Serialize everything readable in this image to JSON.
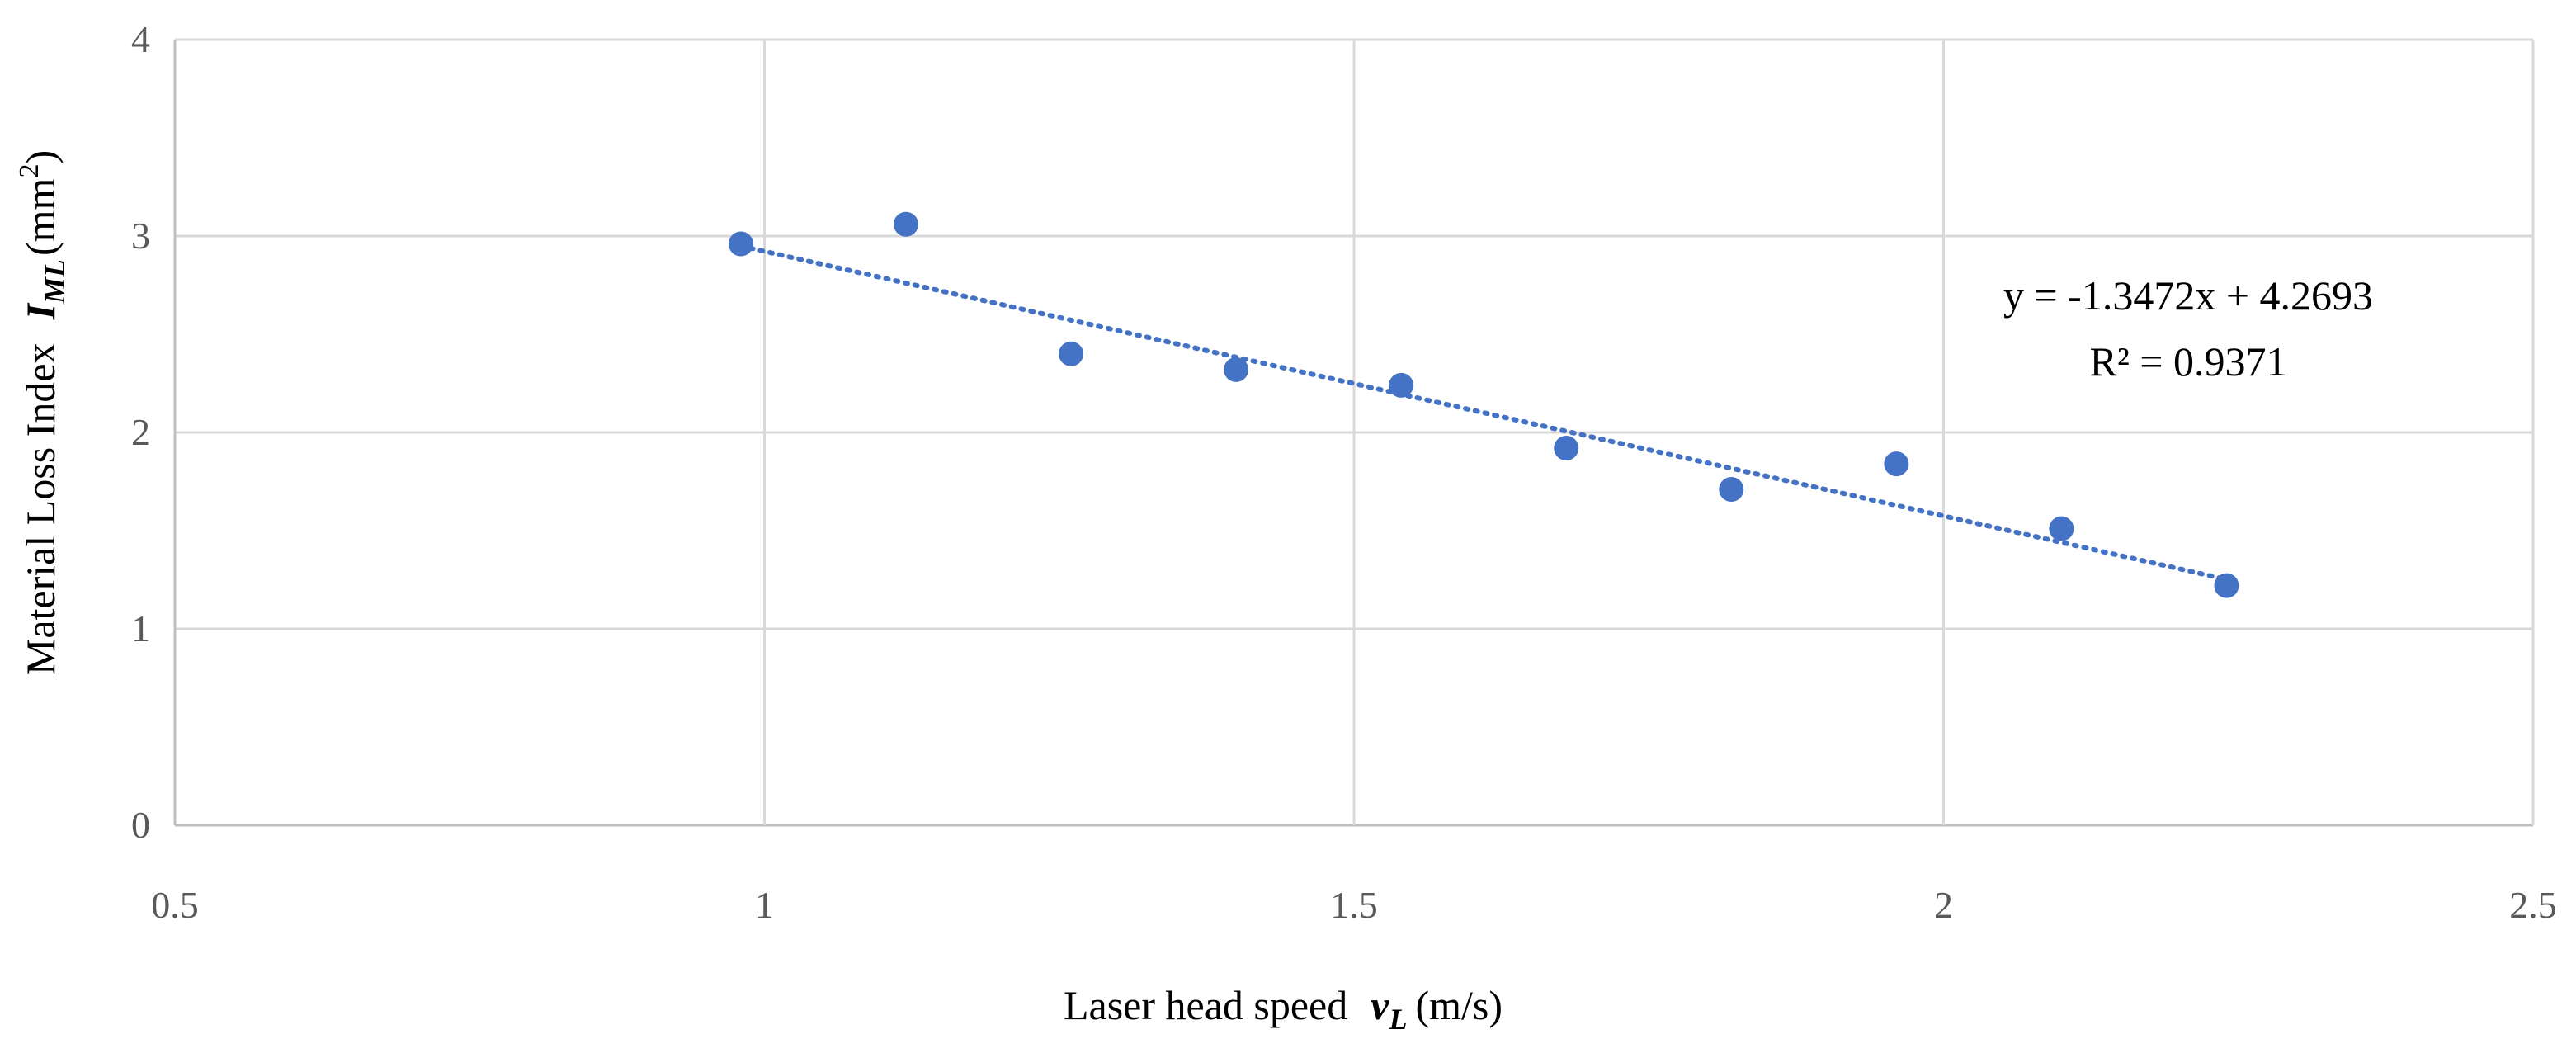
{
  "chart_data": {
    "type": "scatter",
    "title": "",
    "xlabel": {
      "prefix": "Laser head speed",
      "var": "v",
      "sub": "L",
      "unit": "(m/s)"
    },
    "ylabel": {
      "prefix": "Material Loss Index",
      "var": "I",
      "sub": "ML",
      "unit_base": "(mm",
      "unit_sup": "2",
      "unit_close": ")"
    },
    "xlim": [
      0.5,
      2.5
    ],
    "ylim": [
      0,
      4
    ],
    "xticks": [
      0.5,
      1,
      1.5,
      2,
      2.5
    ],
    "xtick_labels": [
      "0.5",
      "1",
      "1.5",
      "2",
      "2.5"
    ],
    "yticks": [
      0,
      1,
      2,
      3,
      4
    ],
    "ytick_labels": [
      "0",
      "1",
      "2",
      "3",
      "4"
    ],
    "grid": true,
    "points": [
      {
        "x": 0.98,
        "y": 2.96
      },
      {
        "x": 1.12,
        "y": 3.06
      },
      {
        "x": 1.26,
        "y": 2.4
      },
      {
        "x": 1.4,
        "y": 2.32
      },
      {
        "x": 1.54,
        "y": 2.24
      },
      {
        "x": 1.68,
        "y": 1.92
      },
      {
        "x": 1.82,
        "y": 1.71
      },
      {
        "x": 1.96,
        "y": 1.84
      },
      {
        "x": 2.1,
        "y": 1.51
      },
      {
        "x": 2.24,
        "y": 1.22
      }
    ],
    "trendline": {
      "slope": -1.3472,
      "intercept": 4.2693,
      "x_from": 0.98,
      "x_to": 2.24,
      "style": "dotted"
    },
    "annotation": {
      "equation": "y = -1.3472x + 4.2693",
      "r2": "R² = 0.9371"
    },
    "colors": {
      "series": "#4472c4",
      "grid": "#d9d9d9",
      "tick_text": "#595959"
    }
  }
}
